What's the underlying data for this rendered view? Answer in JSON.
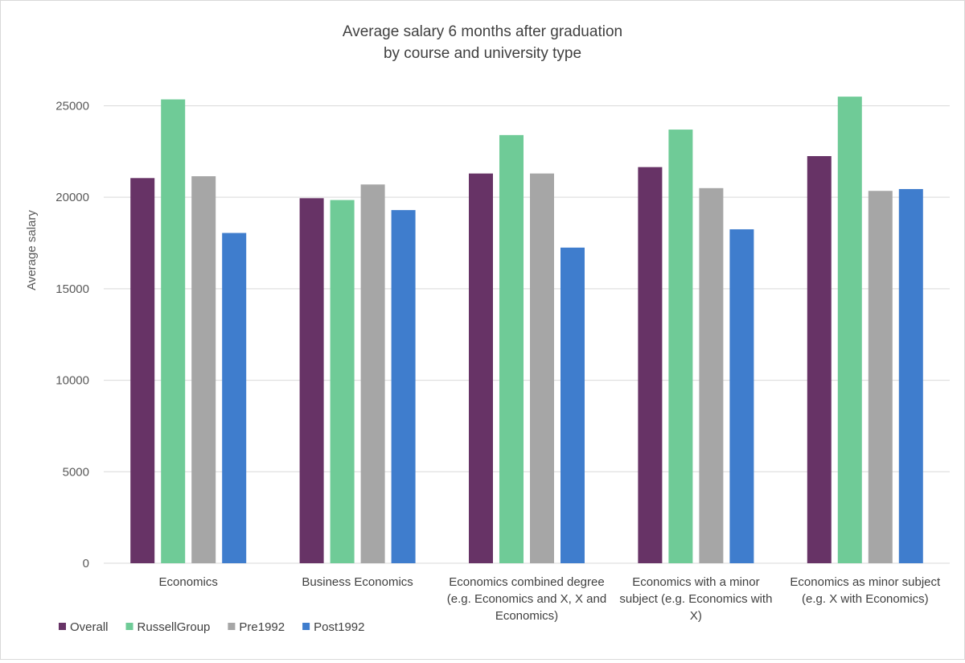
{
  "chart_data": {
    "type": "bar",
    "title": "Average salary 6 months after graduation",
    "subtitle": "by course and university type",
    "ylabel": "Average salary",
    "xlabel": "",
    "ylim": [
      0,
      27000
    ],
    "yticks": [
      0,
      5000,
      10000,
      15000,
      20000,
      25000
    ],
    "grid": true,
    "legend_position": "bottom-left",
    "categories": [
      [
        "Economics"
      ],
      [
        "Business Economics"
      ],
      [
        "Economics combined degree",
        "(e.g. Economics and X, X and",
        "Economics)"
      ],
      [
        "Economics with a minor",
        "subject (e.g. Economics with",
        "X)"
      ],
      [
        "Economics as minor subject",
        "(e.g. X with Economics)"
      ]
    ],
    "series": [
      {
        "name": "Overall",
        "color": "#673366",
        "values": [
          21050,
          19950,
          21300,
          21650,
          22250
        ]
      },
      {
        "name": "RussellGroup",
        "color": "#6fcb97",
        "values": [
          25350,
          19850,
          23400,
          23700,
          25500
        ]
      },
      {
        "name": "Pre1992",
        "color": "#a6a6a6",
        "values": [
          21150,
          20700,
          21300,
          20500,
          20350
        ]
      },
      {
        "name": "Post1992",
        "color": "#3f7dcd",
        "values": [
          18050,
          19300,
          17250,
          18250,
          20450
        ]
      }
    ]
  }
}
